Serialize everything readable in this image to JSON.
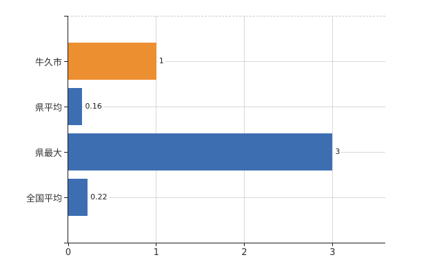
{
  "chart_data": {
    "type": "bar",
    "orientation": "horizontal",
    "categories": [
      "牛久市",
      "県平均",
      "県最大",
      "全国平均"
    ],
    "values": [
      1,
      0.16,
      3,
      0.22
    ],
    "value_labels": [
      "1",
      "0.16",
      "3",
      "0.22"
    ],
    "bar_colors": [
      "#EC8F30",
      "#3D6EB2",
      "#3D6EB2",
      "#3D6EB2"
    ],
    "xlim": [
      0,
      3.6
    ],
    "x_ticks": [
      0,
      1,
      2,
      3
    ],
    "x_tick_labels": [
      "0",
      "1",
      "2",
      "3"
    ],
    "grid": true,
    "legend": "none"
  },
  "colors": {
    "background": "#ffffff",
    "axis": "#1b1b1b",
    "gridline": "#d8d8d8",
    "top_border": "#c9c9c9",
    "category_text": "#303030",
    "value_text": "#1f1f1f",
    "highlight_bar": "#EC8F30",
    "default_bar": "#3D6EB2"
  }
}
